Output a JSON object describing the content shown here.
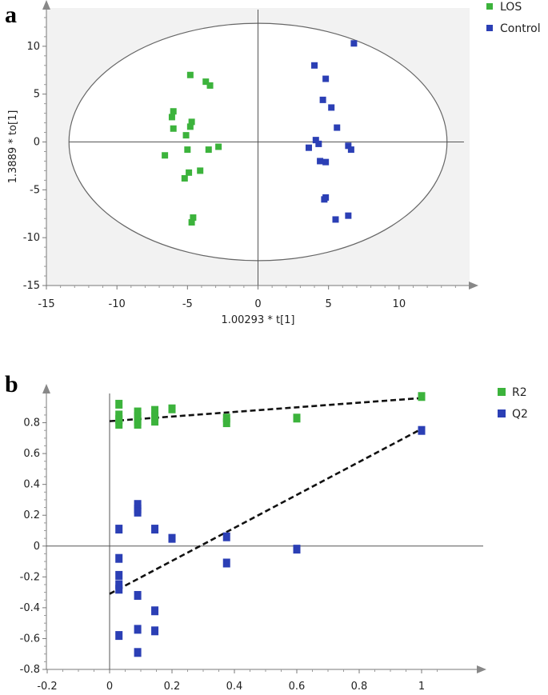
{
  "panels": {
    "a": {
      "label": "a"
    },
    "b": {
      "label": "b"
    }
  },
  "chart_data": [
    {
      "id": "a",
      "type": "scatter",
      "xlabel": "1.00293 * t[1]",
      "ylabel": "1.3889 * to[1]",
      "xlim": [
        -15,
        15
      ],
      "ylim": [
        -15,
        14
      ],
      "xticks": [
        -15,
        -10,
        -5,
        0,
        5,
        10
      ],
      "yticks": [
        -15,
        -10,
        -5,
        0,
        5,
        10
      ],
      "ellipse": {
        "cx": 0,
        "cy": 0,
        "rx": 13.4,
        "ry": 12.4
      },
      "legend": "top-right",
      "series": [
        {
          "name": "LOS",
          "color": "#3cb33c",
          "points": [
            [
              -4.8,
              7.0
            ],
            [
              -3.7,
              6.3
            ],
            [
              -3.4,
              5.9
            ],
            [
              -6.0,
              3.2
            ],
            [
              -6.1,
              2.6
            ],
            [
              -4.7,
              2.1
            ],
            [
              -4.8,
              1.6
            ],
            [
              -6.0,
              1.4
            ],
            [
              -5.1,
              0.7
            ],
            [
              -2.8,
              -0.5
            ],
            [
              -3.5,
              -0.8
            ],
            [
              -5.0,
              -0.8
            ],
            [
              -6.6,
              -1.4
            ],
            [
              -4.1,
              -3.0
            ],
            [
              -4.9,
              -3.2
            ],
            [
              -5.2,
              -3.8
            ],
            [
              -4.6,
              -7.9
            ],
            [
              -4.7,
              -8.4
            ]
          ]
        },
        {
          "name": "Control",
          "color": "#2b3fb5",
          "points": [
            [
              6.8,
              10.3
            ],
            [
              4.0,
              8.0
            ],
            [
              4.8,
              6.6
            ],
            [
              4.6,
              4.4
            ],
            [
              5.2,
              3.6
            ],
            [
              5.6,
              1.5
            ],
            [
              4.1,
              0.2
            ],
            [
              4.3,
              -0.2
            ],
            [
              6.4,
              -0.4
            ],
            [
              3.6,
              -0.6
            ],
            [
              6.6,
              -0.8
            ],
            [
              4.4,
              -2.0
            ],
            [
              4.8,
              -2.1
            ],
            [
              4.8,
              -5.8
            ],
            [
              4.7,
              -6.0
            ],
            [
              6.4,
              -7.7
            ],
            [
              5.5,
              -8.1
            ]
          ]
        }
      ]
    },
    {
      "id": "b",
      "type": "scatter",
      "xlabel": "",
      "ylabel": "",
      "xlim": [
        -0.2,
        1.15
      ],
      "ylim": [
        -0.8,
        1.0
      ],
      "xticks": [
        -0.2,
        0,
        0.2,
        0.4,
        0.6,
        0.8,
        1
      ],
      "xtick_labels": [
        "-0.2",
        "0",
        "0.2",
        "0.4",
        "0.6",
        "0.8",
        "1"
      ],
      "yticks": [
        -0.8,
        -0.6,
        -0.4,
        -0.2,
        0,
        0.2,
        0.4,
        0.6,
        0.8
      ],
      "ytick_labels": [
        "-0.8",
        "-0.6",
        "-0.4",
        "-0.2",
        "0",
        "0.2",
        "0.4",
        "0.6",
        "0.8"
      ],
      "legend": "top-right",
      "series": [
        {
          "name": "R2",
          "color": "#3cb33c",
          "points": [
            [
              0.03,
              0.92
            ],
            [
              0.03,
              0.85
            ],
            [
              0.03,
              0.82
            ],
            [
              0.03,
              0.79
            ],
            [
              0.09,
              0.87
            ],
            [
              0.09,
              0.84
            ],
            [
              0.09,
              0.81
            ],
            [
              0.09,
              0.79
            ],
            [
              0.145,
              0.88
            ],
            [
              0.145,
              0.84
            ],
            [
              0.145,
              0.81
            ],
            [
              0.2,
              0.89
            ],
            [
              0.375,
              0.83
            ],
            [
              0.375,
              0.8
            ],
            [
              0.6,
              0.83
            ],
            [
              1.0,
              0.97
            ]
          ],
          "fit_line": [
            [
              0,
              0.81
            ],
            [
              1.0,
              0.96
            ]
          ]
        },
        {
          "name": "Q2",
          "color": "#2b3fb5",
          "points": [
            [
              0.03,
              0.11
            ],
            [
              0.09,
              0.27
            ],
            [
              0.09,
              0.24
            ],
            [
              0.09,
              0.22
            ],
            [
              0.145,
              0.11
            ],
            [
              0.2,
              0.05
            ],
            [
              0.375,
              0.06
            ],
            [
              0.6,
              -0.02
            ],
            [
              0.03,
              -0.08
            ],
            [
              0.03,
              -0.19
            ],
            [
              0.03,
              -0.25
            ],
            [
              0.03,
              -0.28
            ],
            [
              0.375,
              -0.11
            ],
            [
              0.09,
              -0.32
            ],
            [
              0.145,
              -0.42
            ],
            [
              0.09,
              -0.54
            ],
            [
              0.145,
              -0.55
            ],
            [
              0.03,
              -0.58
            ],
            [
              0.09,
              -0.69
            ],
            [
              1.0,
              0.75
            ]
          ],
          "fit_line": [
            [
              0,
              -0.31
            ],
            [
              1.0,
              0.76
            ]
          ]
        }
      ]
    }
  ]
}
